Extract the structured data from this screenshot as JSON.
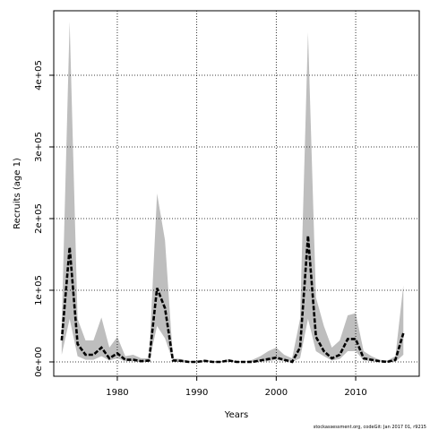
{
  "chart_data": {
    "type": "line",
    "xlabel": "Years",
    "ylabel": "Recruits (age 1)",
    "xlim": [
      1972,
      2018
    ],
    "ylim": [
      -20000,
      490000
    ],
    "x_ticks": [
      1980,
      1990,
      2000,
      2010
    ],
    "x_tick_labels": [
      "1980",
      "1990",
      "2000",
      "2010"
    ],
    "y_ticks": [
      0,
      100000,
      200000,
      300000,
      400000
    ],
    "y_tick_labels": [
      "0e+00",
      "1e+05",
      "2e+05",
      "3e+05",
      "4e+05"
    ],
    "grid": true,
    "series": [
      {
        "type": "line",
        "style": "dashed",
        "color": "#000000",
        "x": [
          1973,
          1974,
          1975,
          1976,
          1977,
          1978,
          1979,
          1980,
          1981,
          1982,
          1983,
          1984,
          1985,
          1986,
          1987,
          1988,
          1989,
          1990,
          1991,
          1992,
          1993,
          1994,
          1995,
          1996,
          1997,
          1998,
          1999,
          2000,
          2001,
          2002,
          2003,
          2004,
          2005,
          2006,
          2007,
          2008,
          2009,
          2010,
          2011,
          2012,
          2013,
          2014,
          2015,
          2016
        ],
        "y": [
          30000,
          160000,
          25000,
          10000,
          10000,
          20000,
          5000,
          12000,
          3000,
          3000,
          1000,
          2000,
          103000,
          75000,
          2000,
          1500,
          0,
          0,
          1500,
          0,
          0,
          2000,
          0,
          0,
          0,
          2000,
          4000,
          6000,
          3000,
          0,
          20000,
          176000,
          35000,
          15000,
          5000,
          10000,
          32000,
          32000,
          5000,
          3000,
          1000,
          0,
          3000,
          40000
        ]
      },
      {
        "type": "area",
        "name": "",
        "color": "#bebebe",
        "x": [
          1973,
          1974,
          1975,
          1976,
          1977,
          1978,
          1979,
          1980,
          1981,
          1982,
          1983,
          1984,
          1985,
          1986,
          1987,
          1988,
          1989,
          1990,
          1991,
          1992,
          1993,
          1994,
          1995,
          1996,
          1997,
          1998,
          1999,
          2000,
          2001,
          2002,
          2003,
          2004,
          2005,
          2006,
          2007,
          2008,
          2009,
          2010,
          2011,
          2012,
          2013,
          2014,
          2015,
          2016
        ],
        "lower": [
          10000,
          60000,
          8000,
          3000,
          3000,
          8000,
          2000,
          5000,
          1000,
          1000,
          0,
          0,
          50000,
          33000,
          500,
          500,
          0,
          0,
          0,
          0,
          0,
          0,
          0,
          0,
          0,
          500,
          1000,
          3000,
          1000,
          0,
          5000,
          60000,
          15000,
          8000,
          2000,
          4000,
          15000,
          15000,
          2000,
          1000,
          0,
          0,
          0,
          10000
        ],
        "upper": [
          50000,
          475000,
          60000,
          30000,
          30000,
          62000,
          20000,
          35000,
          8000,
          10000,
          5000,
          5000,
          235000,
          170000,
          5000,
          4000,
          1000,
          1000,
          3000,
          1000,
          1000,
          4000,
          1000,
          500,
          3000,
          8000,
          15000,
          20000,
          10000,
          5000,
          60000,
          460000,
          90000,
          50000,
          20000,
          30000,
          65000,
          68000,
          15000,
          8000,
          3000,
          2000,
          8000,
          107000
        ]
      }
    ],
    "footer": "stockassessment.org, codeGit: Jan 2017 01, r9215"
  }
}
